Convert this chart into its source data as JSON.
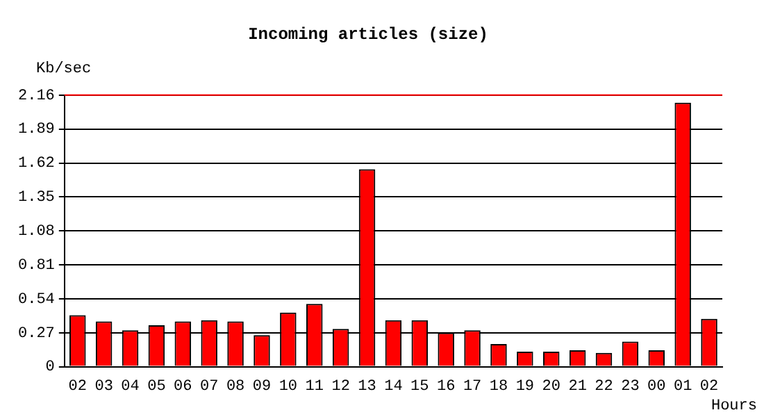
{
  "chart_data": {
    "type": "bar",
    "title": "Incoming articles (size)",
    "xlabel": "Hours",
    "ylabel": "Kb/sec",
    "categories": [
      "02",
      "03",
      "04",
      "05",
      "06",
      "07",
      "08",
      "09",
      "10",
      "11",
      "12",
      "13",
      "14",
      "15",
      "16",
      "17",
      "18",
      "19",
      "20",
      "21",
      "22",
      "23",
      "00",
      "01",
      "02"
    ],
    "values": [
      0.41,
      0.36,
      0.29,
      0.33,
      0.36,
      0.37,
      0.36,
      0.25,
      0.43,
      0.5,
      0.3,
      1.57,
      0.37,
      0.37,
      0.27,
      0.29,
      0.18,
      0.12,
      0.12,
      0.13,
      0.11,
      0.2,
      0.13,
      2.1,
      0.38
    ],
    "color": "#ff0000",
    "ylim": [
      0,
      2.16
    ],
    "yticks": [
      0,
      0.27,
      0.54,
      0.81,
      1.08,
      1.35,
      1.62,
      1.89,
      2.16
    ],
    "grid": "y",
    "ref_lines": [
      {
        "axis": "y",
        "value": 2.16,
        "color": "#ff0000"
      }
    ]
  }
}
